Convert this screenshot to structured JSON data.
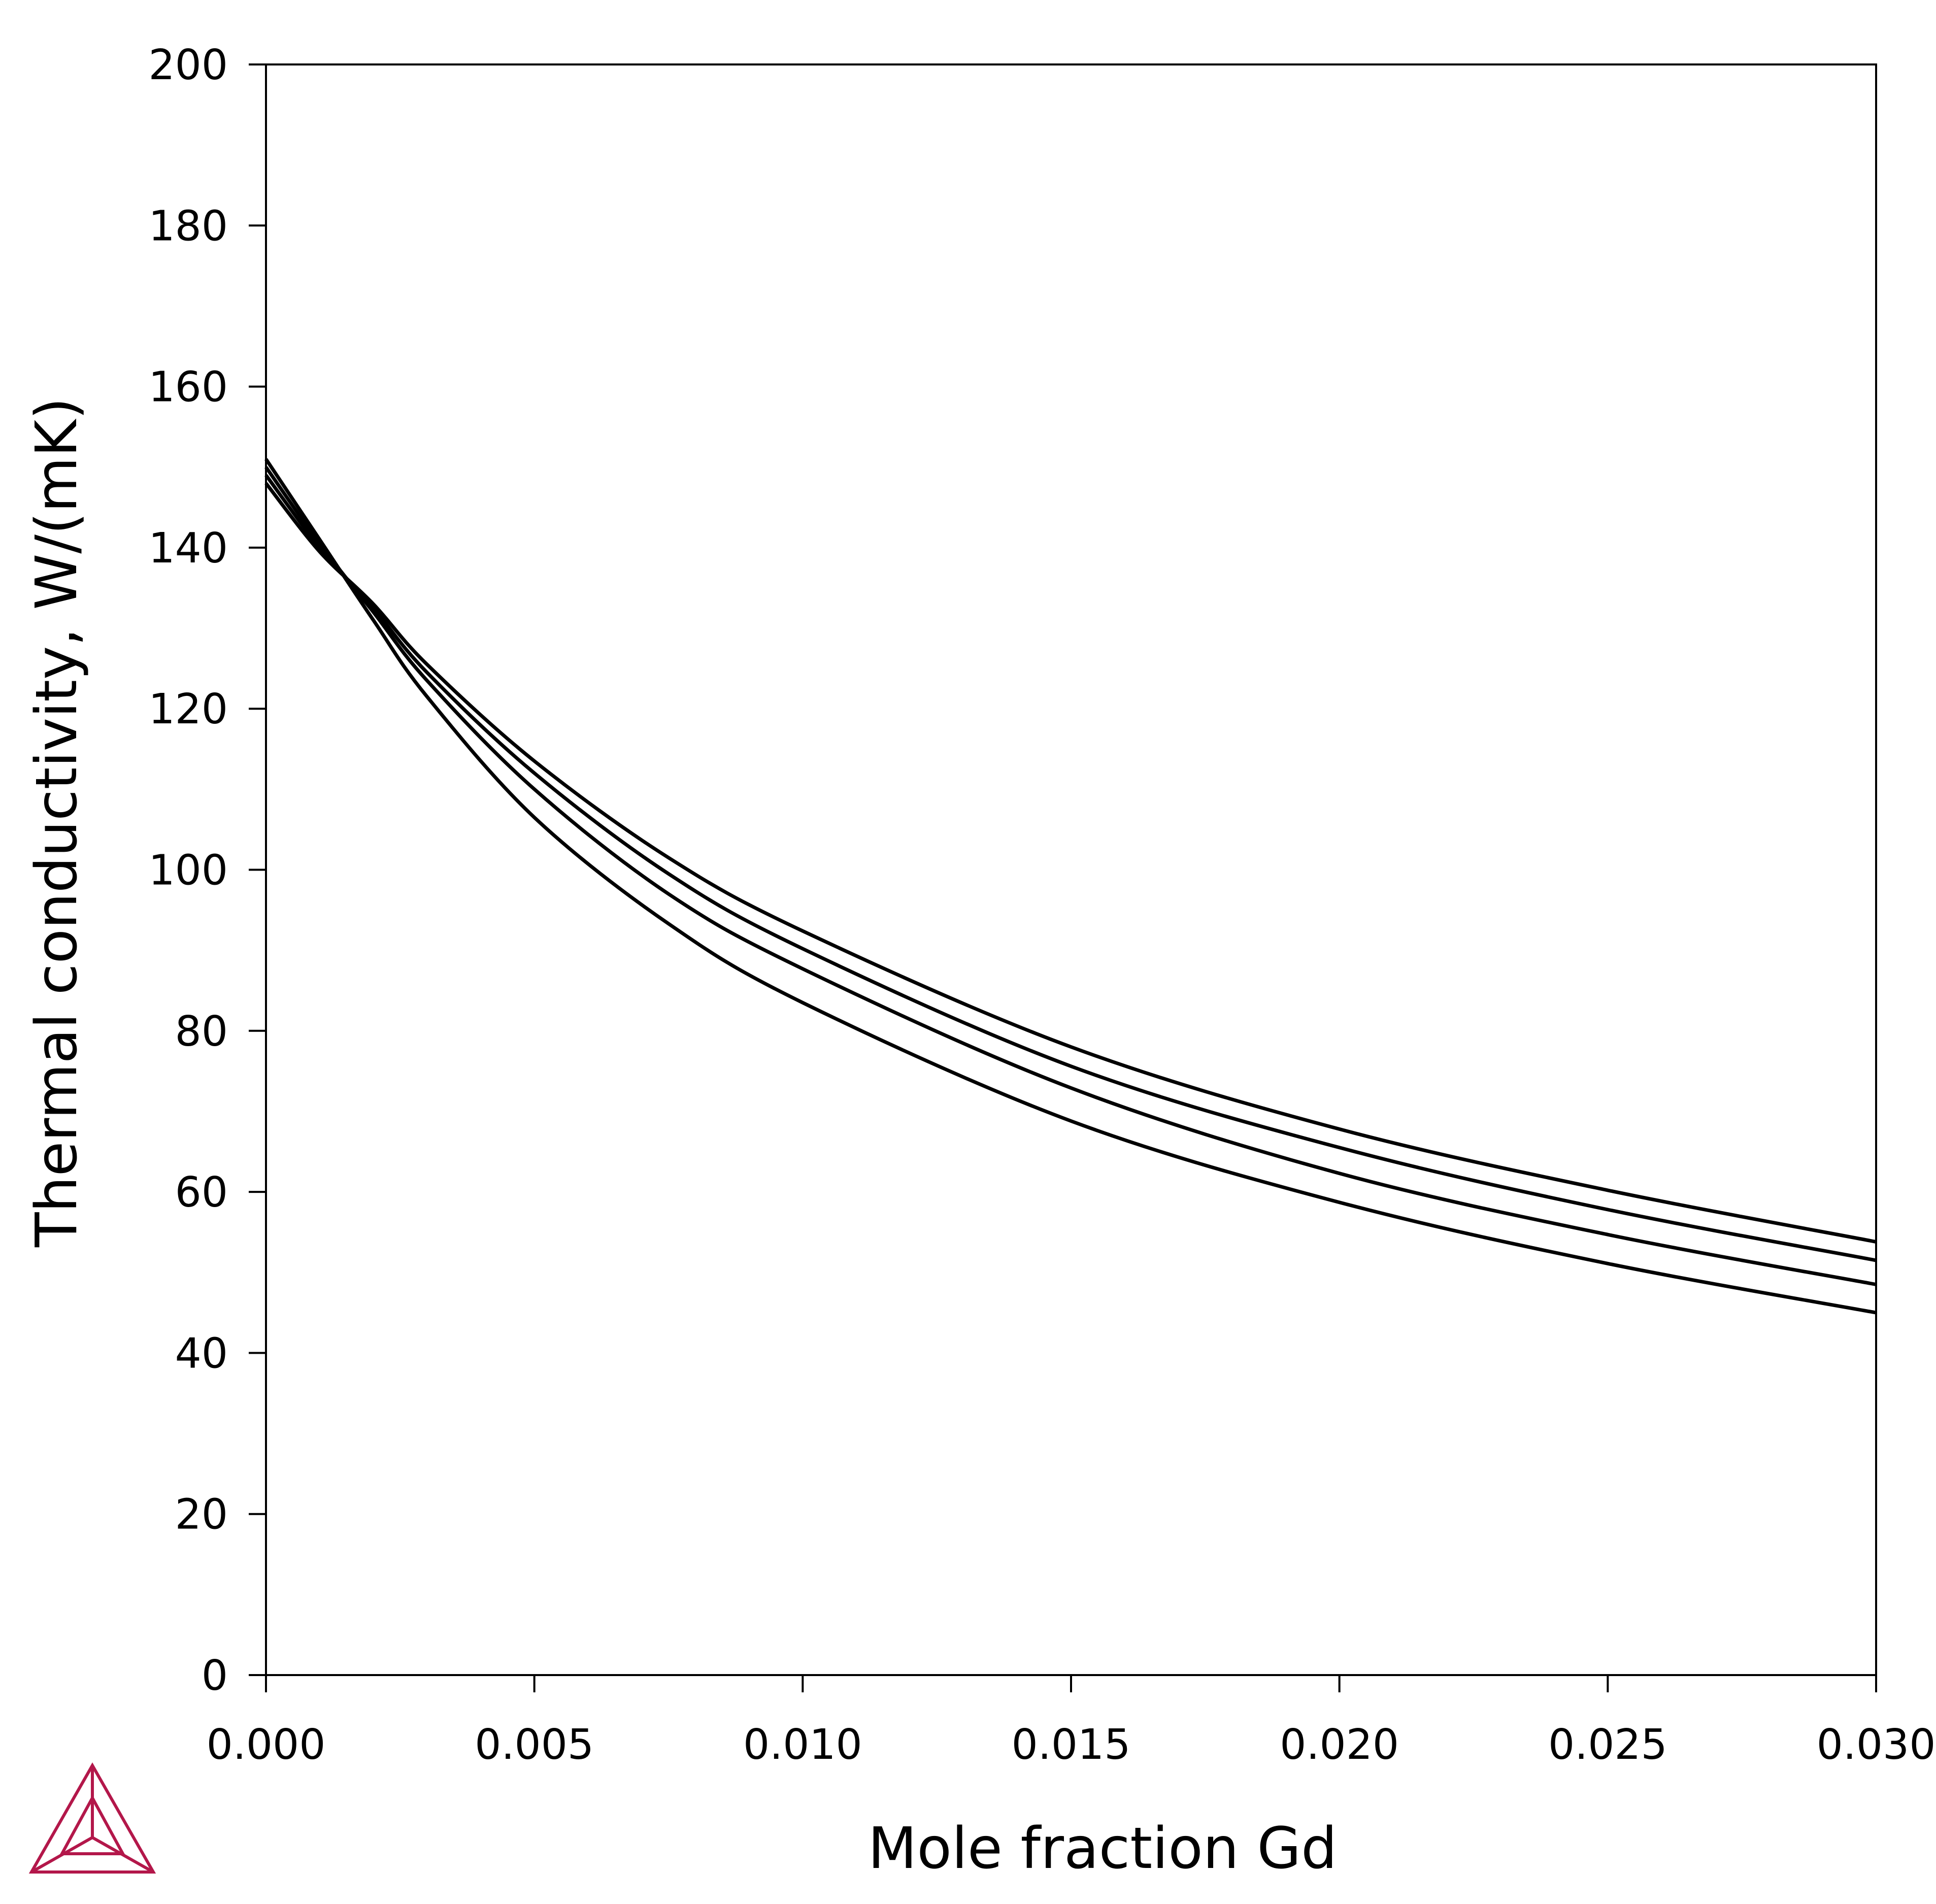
{
  "chart_data": {
    "type": "line",
    "title": "",
    "xlabel": "Mole fraction Gd",
    "ylabel": "Thermal conductivity, W/(mK)",
    "xlim": [
      0.0,
      0.03
    ],
    "ylim": [
      0,
      200
    ],
    "x_ticks": [
      "0.000",
      "0.005",
      "0.010",
      "0.015",
      "0.020",
      "0.025",
      "0.030"
    ],
    "y_ticks": [
      "0",
      "20",
      "40",
      "60",
      "80",
      "100",
      "120",
      "140",
      "160",
      "180",
      "200"
    ],
    "grid": false,
    "legend": "none",
    "line_color": "#000000",
    "logo_color": "#b3174a",
    "x": [
      0.0,
      0.001,
      0.002,
      0.003,
      0.005,
      0.0075,
      0.01,
      0.015,
      0.02,
      0.025,
      0.03
    ],
    "series": [
      {
        "values": [
          151.0,
          141.0,
          131.0,
          121.5,
          106.5,
          93.3,
          83.5,
          68.8,
          58.7,
          51.1,
          45.0
        ]
      },
      {
        "values": [
          150.0,
          140.5,
          132.0,
          123.5,
          110.0,
          97.0,
          87.7,
          72.9,
          62.3,
          54.7,
          48.5
        ]
      },
      {
        "values": [
          149.0,
          140.0,
          132.5,
          124.5,
          112.0,
          99.5,
          90.2,
          75.6,
          65.5,
          57.8,
          51.5
        ]
      },
      {
        "values": [
          148.0,
          139.5,
          133.0,
          125.5,
          113.5,
          101.5,
          92.4,
          78.0,
          67.8,
          60.2,
          53.8
        ]
      }
    ]
  }
}
